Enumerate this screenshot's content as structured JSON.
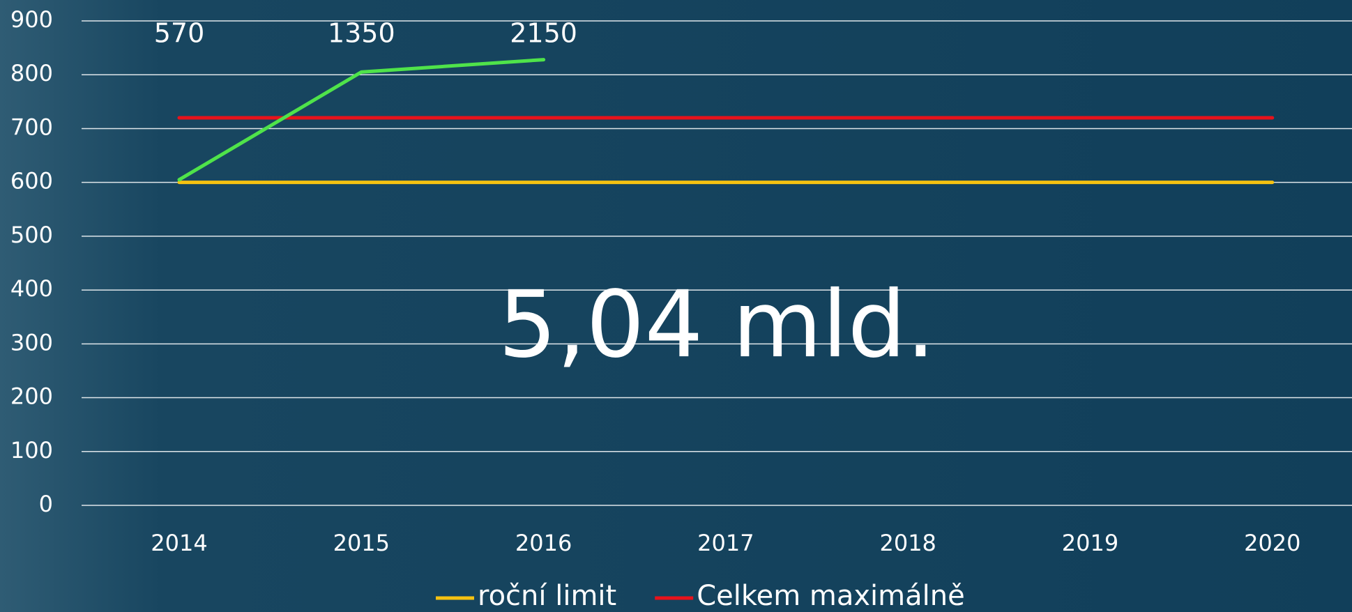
{
  "chart_data": {
    "type": "line",
    "categories": [
      "2014",
      "2015",
      "2016",
      "2017",
      "2018",
      "2019",
      "2020"
    ],
    "series": [
      {
        "name": "roční limit",
        "color": "#f5c211",
        "values": [
          600,
          600,
          600,
          600,
          600,
          600,
          600
        ]
      },
      {
        "name": "Celkem maximálně",
        "color": "#e8121b",
        "values": [
          720,
          720,
          720,
          720,
          720,
          720,
          720
        ]
      },
      {
        "color": "#4fe34a",
        "values": [
          605,
          805,
          828,
          null,
          null,
          null,
          null
        ]
      }
    ],
    "annotations": [
      "570",
      "1350",
      "2150",
      "5,04 mld."
    ],
    "ylim": [
      0,
      900
    ],
    "yticks": [
      0,
      100,
      200,
      300,
      400,
      500,
      600,
      700,
      800,
      900
    ],
    "grid": true,
    "legend": "bottom"
  }
}
